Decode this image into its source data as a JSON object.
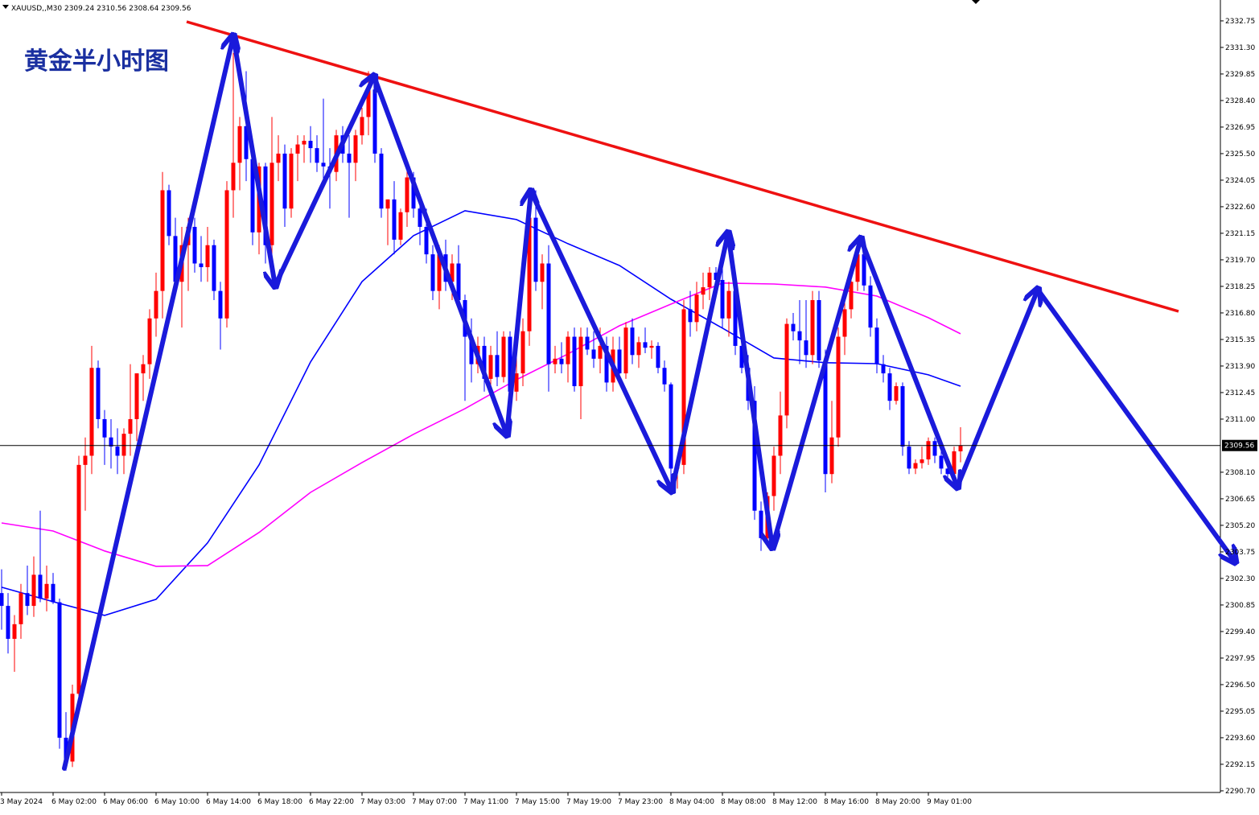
{
  "chart_data": {
    "type": "candlestick",
    "title": "黄金半小时图",
    "symbol": "XAUUSD,,M30",
    "header_values": [
      2309.24,
      2310.56,
      2308.64,
      2309.56
    ],
    "up_color": "#ff0000",
    "down_color": "#0000ff",
    "ylim": [
      2290.61,
      2333.89
    ],
    "yticks": [
      2332.75,
      {
        "value": 2331.3,
        "label": "2331.30"
      },
      2329.85,
      {
        "value": 2328.4,
        "label": "2328.40"
      },
      2326.95,
      {
        "value": 2325.5,
        "label": "2325.50"
      },
      2324.05,
      {
        "value": 2322.6,
        "label": "2322.60"
      },
      2321.15,
      {
        "value": 2319.7,
        "label": "2319.70"
      },
      2318.25,
      {
        "value": 2316.8,
        "label": "2316.80"
      },
      2315.35,
      {
        "value": 2313.9,
        "label": "2313.90"
      },
      2312.45,
      {
        "value": 2311,
        "label": "2311.00"
      },
      {
        "value": 2308.1,
        "label": "2308.10"
      },
      2306.65,
      {
        "value": 2305.2,
        "label": "2305.20"
      },
      2303.75,
      {
        "value": 2302.3,
        "label": "2302.30"
      },
      2300.85,
      {
        "value": 2299.4,
        "label": "2299.40"
      },
      2297.95,
      {
        "value": 2296.5,
        "label": "2296.50"
      },
      2295.05,
      {
        "value": 2293.6,
        "label": "2293.60"
      },
      2292.15,
      {
        "value": 2290.7,
        "label": "2290.70"
      }
    ],
    "xticks": [
      {
        "value": 0,
        "label": "3 May 2024"
      },
      {
        "value": 8,
        "label": "6 May 02:00"
      },
      {
        "value": 16,
        "label": "6 May 06:00"
      },
      {
        "value": 24,
        "label": "6 May 10:00"
      },
      {
        "value": 32,
        "label": "6 May 14:00"
      },
      {
        "value": 40,
        "label": "6 May 18:00"
      },
      {
        "value": 48,
        "label": "6 May 22:00"
      },
      {
        "value": 56,
        "label": "7 May 03:00"
      },
      {
        "value": 64,
        "label": "7 May 07:00"
      },
      {
        "value": 72,
        "label": "7 May 11:00"
      },
      {
        "value": 80,
        "label": "7 May 15:00"
      },
      {
        "value": 88,
        "label": "7 May 19:00"
      },
      {
        "value": 96,
        "label": "7 May 23:00"
      },
      {
        "value": 104,
        "label": "8 May 04:00"
      },
      {
        "value": 112,
        "label": "8 May 08:00"
      },
      {
        "value": 120,
        "label": "8 May 12:00"
      },
      {
        "value": 128,
        "label": "8 May 16:00"
      },
      {
        "value": 136,
        "label": "8 May 20:00"
      },
      {
        "value": 144,
        "label": "9 May 01:00"
      }
    ],
    "current_price": 2309.56,
    "candles": [
      [
        2301.5,
        2302.8,
        2299.5,
        2300.8
      ],
      [
        2300.8,
        2301.5,
        2298.2,
        2299.0
      ],
      [
        2299.0,
        2300.3,
        2297.2,
        2299.8
      ],
      [
        2299.8,
        2302.0,
        2299.0,
        2301.5
      ],
      [
        2301.5,
        2303.0,
        2300.3,
        2300.8
      ],
      [
        2300.8,
        2303.5,
        2300.2,
        2302.5
      ],
      [
        2302.5,
        2306.0,
        2301.0,
        2301.2
      ],
      [
        2301.2,
        2303.0,
        2300.5,
        2302.0
      ],
      [
        2302.0,
        2302.6,
        2300.9,
        2301.0
      ],
      [
        2301.0,
        2301.2,
        2293.0,
        2293.6
      ],
      [
        2293.6,
        2295.0,
        2291.8,
        2292.3
      ],
      [
        2292.3,
        2296.5,
        2292.0,
        2296.0
      ],
      [
        2296.0,
        2309.0,
        2295.5,
        2308.5
      ],
      [
        2308.5,
        2310.0,
        2306.0,
        2309.0
      ],
      [
        2309.0,
        2315.0,
        2308.0,
        2313.8
      ],
      [
        2313.8,
        2314.2,
        2310.5,
        2311.0
      ],
      [
        2311.0,
        2311.5,
        2308.5,
        2310.0
      ],
      [
        2310.0,
        2311.0,
        2308.3,
        2309.5
      ],
      [
        2309.5,
        2310.5,
        2308.0,
        2309.0
      ],
      [
        2309.0,
        2310.5,
        2308.0,
        2310.2
      ],
      [
        2310.2,
        2314.0,
        2309.0,
        2311.0
      ],
      [
        2311.0,
        2313.5,
        2309.8,
        2313.5
      ],
      [
        2313.5,
        2314.5,
        2312.0,
        2314.0
      ],
      [
        2314.0,
        2317.0,
        2313.2,
        2316.5
      ],
      [
        2316.5,
        2319.0,
        2315.5,
        2318.0
      ],
      [
        2318.0,
        2324.5,
        2316.5,
        2323.5
      ],
      [
        2323.5,
        2323.8,
        2320.5,
        2321.0
      ],
      [
        2321.0,
        2322.0,
        2318.0,
        2318.5
      ],
      [
        2318.5,
        2321.5,
        2316.0,
        2320.5
      ],
      [
        2320.5,
        2322.0,
        2318.0,
        2321.5
      ],
      [
        2321.5,
        2322.0,
        2319.0,
        2319.5
      ],
      [
        2319.5,
        2321.0,
        2318.5,
        2319.3
      ],
      [
        2319.3,
        2321.5,
        2318.5,
        2320.5
      ],
      [
        2320.5,
        2320.8,
        2317.5,
        2318.0
      ],
      [
        2318.0,
        2318.5,
        2314.8,
        2316.5
      ],
      [
        2316.5,
        2324.0,
        2316.0,
        2323.5
      ],
      [
        2323.5,
        2331.0,
        2322.0,
        2325.0
      ],
      [
        2325.0,
        2327.5,
        2323.5,
        2327.0
      ],
      [
        2327.0,
        2330.0,
        2324.0,
        2325.2
      ],
      [
        2325.2,
        2326.0,
        2320.5,
        2321.2
      ],
      [
        2321.2,
        2325.0,
        2320.0,
        2324.8
      ],
      [
        2324.8,
        2325.0,
        2319.5,
        2320.5
      ],
      [
        2320.5,
        2327.5,
        2320.0,
        2325.0
      ],
      [
        2325.0,
        2326.5,
        2324.0,
        2325.5
      ],
      [
        2325.5,
        2326.0,
        2321.5,
        2322.5
      ],
      [
        2322.5,
        2325.8,
        2322.0,
        2325.5
      ],
      [
        2325.5,
        2326.5,
        2324.0,
        2326.0
      ],
      [
        2326.0,
        2326.5,
        2325.0,
        2326.2
      ],
      [
        2326.2,
        2327.0,
        2325.0,
        2325.8
      ],
      [
        2325.8,
        2326.5,
        2324.5,
        2325.0
      ],
      [
        2325.0,
        2328.5,
        2324.0,
        2324.8
      ],
      [
        2324.8,
        2325.8,
        2322.5,
        2324.5
      ],
      [
        2324.5,
        2326.8,
        2324.0,
        2326.5
      ],
      [
        2326.5,
        2327.0,
        2325.0,
        2325.5
      ],
      [
        2325.5,
        2326.5,
        2322.0,
        2325.0
      ],
      [
        2325.0,
        2326.8,
        2324.0,
        2326.5
      ],
      [
        2326.5,
        2328.0,
        2326.0,
        2327.5
      ],
      [
        2327.5,
        2330.0,
        2326.5,
        2329.0
      ],
      [
        2329.0,
        2329.5,
        2325.0,
        2325.5
      ],
      [
        2325.5,
        2325.8,
        2322.0,
        2322.5
      ],
      [
        2322.5,
        2323.0,
        2320.5,
        2323.0
      ],
      [
        2323.0,
        2324.0,
        2320.0,
        2320.8
      ],
      [
        2320.8,
        2322.5,
        2320.5,
        2322.3
      ],
      [
        2322.3,
        2324.8,
        2321.5,
        2324.2
      ],
      [
        2324.2,
        2324.5,
        2322.0,
        2322.5
      ],
      [
        2322.5,
        2323.0,
        2320.5,
        2321.5
      ],
      [
        2321.5,
        2322.5,
        2319.5,
        2320.0
      ],
      [
        2320.0,
        2320.5,
        2317.5,
        2318.0
      ],
      [
        2318.0,
        2320.5,
        2317.0,
        2320.0
      ],
      [
        2320.0,
        2320.8,
        2318.0,
        2318.5
      ],
      [
        2318.5,
        2320.0,
        2317.5,
        2319.5
      ],
      [
        2319.5,
        2320.5,
        2317.0,
        2317.5
      ],
      [
        2317.5,
        2317.8,
        2312.0,
        2315.5
      ],
      [
        2315.5,
        2316.5,
        2313.0,
        2314.0
      ],
      [
        2314.0,
        2315.5,
        2313.5,
        2315.0
      ],
      [
        2315.0,
        2315.5,
        2312.5,
        2313.2
      ],
      [
        2313.2,
        2315.0,
        2312.8,
        2314.5
      ],
      [
        2314.5,
        2315.8,
        2312.8,
        2313.3
      ],
      [
        2313.3,
        2315.8,
        2313.0,
        2315.5
      ],
      [
        2315.5,
        2315.8,
        2312.0,
        2312.5
      ],
      [
        2312.5,
        2314.5,
        2312.0,
        2313.5
      ],
      [
        2313.5,
        2316.5,
        2312.8,
        2315.8
      ],
      [
        2315.8,
        2323.0,
        2315.0,
        2322.0
      ],
      [
        2322.0,
        2323.5,
        2318.0,
        2318.5
      ],
      [
        2318.5,
        2320.0,
        2317.0,
        2319.5
      ],
      [
        2319.5,
        2320.5,
        2312.5,
        2314.0
      ],
      [
        2314.0,
        2315.0,
        2313.5,
        2314.3
      ],
      [
        2314.3,
        2315.2,
        2313.5,
        2314.0
      ],
      [
        2314.0,
        2315.8,
        2313.0,
        2315.5
      ],
      [
        2315.5,
        2316.0,
        2312.5,
        2312.8
      ],
      [
        2312.8,
        2316.0,
        2311.0,
        2315.5
      ],
      [
        2315.5,
        2316.0,
        2314.5,
        2314.8
      ],
      [
        2314.8,
        2315.8,
        2313.8,
        2314.3
      ],
      [
        2314.3,
        2316.0,
        2313.5,
        2315.0
      ],
      [
        2315.0,
        2315.5,
        2312.5,
        2313.0
      ],
      [
        2313.0,
        2315.5,
        2312.5,
        2314.8
      ],
      [
        2314.8,
        2315.5,
        2313.0,
        2313.5
      ],
      [
        2313.5,
        2316.3,
        2313.2,
        2316.0
      ],
      [
        2316.0,
        2316.5,
        2314.0,
        2314.5
      ],
      [
        2314.5,
        2315.5,
        2313.8,
        2315.2
      ],
      [
        2315.2,
        2316.0,
        2314.6,
        2314.9
      ],
      [
        2314.9,
        2315.3,
        2314.3,
        2315.0
      ],
      [
        2315.0,
        2315.2,
        2313.5,
        2313.8
      ],
      [
        2313.8,
        2314.2,
        2312.5,
        2312.9
      ],
      [
        2312.9,
        2313.0,
        2307.5,
        2308.3
      ],
      [
        2308.3,
        2309.0,
        2307.2,
        2308.5
      ],
      [
        2308.5,
        2317.5,
        2308.0,
        2317.0
      ],
      [
        2317.0,
        2318.0,
        2315.5,
        2316.3
      ],
      [
        2316.3,
        2318.5,
        2315.8,
        2317.8
      ],
      [
        2317.8,
        2319.0,
        2317.0,
        2318.2
      ],
      [
        2318.2,
        2319.3,
        2317.5,
        2319.0
      ],
      [
        2319.0,
        2319.3,
        2318.0,
        2318.6
      ],
      [
        2318.6,
        2320.0,
        2316.0,
        2316.5
      ],
      [
        2316.5,
        2318.5,
        2315.5,
        2318.0
      ],
      [
        2318.0,
        2318.5,
        2314.5,
        2315.0
      ],
      [
        2315.0,
        2316.0,
        2313.5,
        2313.8
      ],
      [
        2313.8,
        2314.5,
        2311.5,
        2312.0
      ],
      [
        2312.0,
        2312.8,
        2305.5,
        2306.0
      ],
      [
        2306.0,
        2306.5,
        2303.8,
        2304.5
      ],
      [
        2304.5,
        2307.0,
        2304.0,
        2306.8
      ],
      [
        2306.8,
        2309.5,
        2306.0,
        2309.0
      ],
      [
        2309.0,
        2312.5,
        2308.0,
        2311.2
      ],
      [
        2311.2,
        2316.5,
        2310.5,
        2316.2
      ],
      [
        2316.2,
        2316.8,
        2315.3,
        2315.8
      ],
      [
        2315.8,
        2317.5,
        2314.0,
        2315.3
      ],
      [
        2315.3,
        2317.5,
        2313.8,
        2314.5
      ],
      [
        2314.5,
        2318.0,
        2314.0,
        2317.5
      ],
      [
        2317.5,
        2318.0,
        2313.8,
        2314.2
      ],
      [
        2314.2,
        2314.8,
        2307.0,
        2308.0
      ],
      [
        2308.0,
        2312.0,
        2307.5,
        2310.0
      ],
      [
        2310.0,
        2316.0,
        2309.5,
        2315.5
      ],
      [
        2315.5,
        2317.5,
        2314.5,
        2317.0
      ],
      [
        2317.0,
        2319.0,
        2316.5,
        2318.5
      ],
      [
        2318.5,
        2320.5,
        2318.0,
        2320.0
      ],
      [
        2320.0,
        2320.5,
        2318.0,
        2318.3
      ],
      [
        2318.3,
        2318.8,
        2315.5,
        2316.0
      ],
      [
        2316.0,
        2316.5,
        2313.5,
        2314.0
      ],
      [
        2314.0,
        2314.5,
        2313.0,
        2313.5
      ],
      [
        2313.5,
        2313.8,
        2311.5,
        2312.0
      ],
      [
        2312.0,
        2313.0,
        2311.8,
        2312.8
      ],
      [
        2312.8,
        2313.0,
        2309.0,
        2309.5
      ],
      [
        2309.5,
        2309.8,
        2308.0,
        2308.3
      ],
      [
        2308.3,
        2308.8,
        2308.0,
        2308.6
      ],
      [
        2308.6,
        2309.5,
        2308.3,
        2308.8
      ],
      [
        2308.8,
        2310.0,
        2308.5,
        2309.8
      ],
      [
        2309.8,
        2310.0,
        2308.6,
        2309.0
      ],
      [
        2309.0,
        2309.5,
        2308.0,
        2308.3
      ],
      [
        2308.3,
        2308.8,
        2307.8,
        2308.0
      ],
      [
        2308.0,
        2309.5,
        2307.8,
        2309.24
      ],
      [
        2309.24,
        2310.56,
        2308.64,
        2309.56
      ]
    ],
    "indicators": [
      {
        "color": "#0000ff",
        "x": [
          0,
          8,
          16,
          24,
          32,
          40,
          48,
          56,
          64,
          72,
          80,
          88,
          96,
          104,
          112,
          120,
          128,
          136,
          144,
          149
        ],
        "values": [
          2301.82,
          2301.03,
          2300.28,
          2301.16,
          2304.24,
          2308.5,
          2314.12,
          2318.51,
          2321.02,
          2322.38,
          2321.9,
          2320.58,
          2319.39,
          2317.55,
          2315.97,
          2314.34,
          2314.08,
          2314.03,
          2313.42,
          2312.8
        ]
      },
      {
        "color": "#ff00ff",
        "x": [
          0,
          8,
          16,
          24,
          32,
          40,
          48,
          56,
          64,
          72,
          80,
          88,
          96,
          104,
          112,
          120,
          128,
          136,
          144,
          149
        ],
        "values": [
          2305.33,
          2304.89,
          2303.8,
          2302.96,
          2303.0,
          2304.81,
          2307.0,
          2308.63,
          2310.17,
          2311.57,
          2313.15,
          2314.56,
          2316.1,
          2317.28,
          2318.43,
          2318.38,
          2318.21,
          2317.72,
          2316.54,
          2315.66
        ]
      }
    ]
  }
}
